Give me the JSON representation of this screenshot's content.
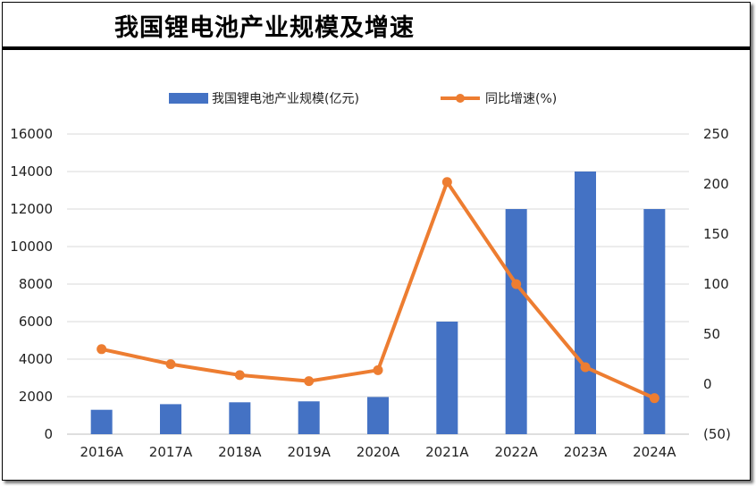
{
  "title": "我国锂电池产业规模及增速",
  "chart_data": {
    "type": "bar",
    "categories": [
      "2016A",
      "2017A",
      "2018A",
      "2019A",
      "2020A",
      "2021A",
      "2022A",
      "2023A",
      "2024A"
    ],
    "series": [
      {
        "name": "我国锂电池产业规模(亿元)",
        "type": "bar",
        "axis": "left",
        "color": "#4472C4",
        "values": [
          1300,
          1600,
          1700,
          1750,
          1980,
          6000,
          12000,
          14000,
          12000
        ]
      },
      {
        "name": "同比增速(%)",
        "type": "line",
        "axis": "right",
        "color": "#ED7D31",
        "values": [
          35,
          20,
          9,
          3,
          14,
          202,
          100,
          17,
          -14
        ]
      }
    ],
    "left_axis": {
      "ylim": [
        0,
        16000
      ],
      "ticks": [
        "0",
        "2000",
        "4000",
        "6000",
        "8000",
        "10000",
        "12000",
        "14000",
        "16000"
      ]
    },
    "right_axis": {
      "ylim": [
        -50,
        250
      ],
      "ticks": [
        "(50)",
        "0",
        "50",
        "100",
        "150",
        "200",
        "250"
      ],
      "negative_color": "#FF0000"
    },
    "legend_position": "top",
    "grid": "horizontal"
  }
}
